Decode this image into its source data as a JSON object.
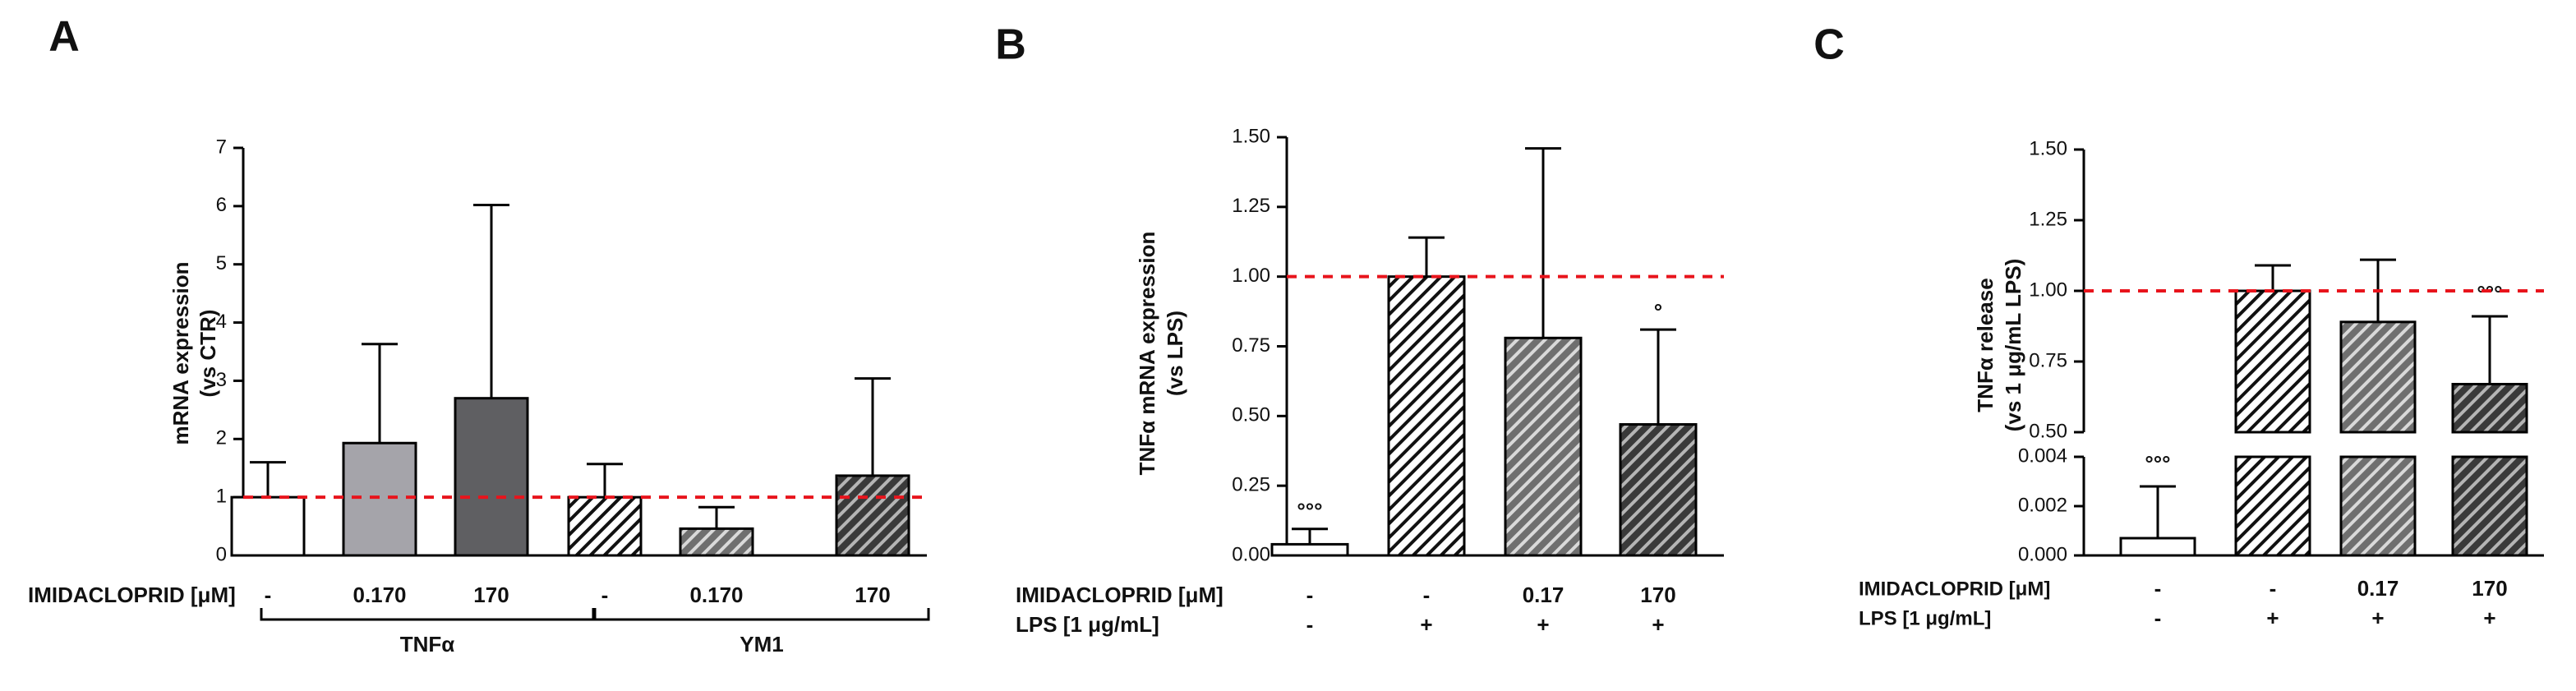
{
  "colors": {
    "bar_outline": "#000000",
    "ref_line": "#e8141c",
    "white": "#ffffff",
    "light_gray": "#a5a4aa",
    "dark_gray": "#5f5f62",
    "hatch_mid": "#6f6f6f",
    "hatch_dark": "#3a3a3a"
  },
  "chart_data": [
    {
      "panel_label": "A",
      "type": "bar",
      "ylabel_lines": [
        "mRNA expression",
        "(vs CTR)"
      ],
      "ylim": [
        0,
        7
      ],
      "yticks": [
        "0",
        "1",
        "2",
        "3",
        "4",
        "5",
        "6",
        "7"
      ],
      "reference_line": 1,
      "row_labels": [
        "IMIDACLOPRID [μM]"
      ],
      "rows": [
        [
          "-",
          "0.170",
          "170",
          "-",
          "0.170",
          "170"
        ]
      ],
      "groups": [
        {
          "label": "TNFα",
          "from": 0,
          "to": 2
        },
        {
          "label": "YM1",
          "from": 3,
          "to": 5
        }
      ],
      "bars": [
        {
          "value": 1.0,
          "err": 0.6,
          "fill": "white"
        },
        {
          "value": 1.93,
          "err": 1.7,
          "fill": "light_gray"
        },
        {
          "value": 2.7,
          "err": 3.32,
          "fill": "dark_gray"
        },
        {
          "value": 1.0,
          "err": 0.57,
          "fill": "hatch_light"
        },
        {
          "value": 0.46,
          "err": 0.37,
          "fill": "hatch_mid"
        },
        {
          "value": 1.37,
          "err": 1.67,
          "fill": "hatch_dark"
        }
      ]
    },
    {
      "panel_label": "B",
      "type": "bar",
      "ylabel_lines": [
        "TNFα mRNA expression",
        "(vs LPS)"
      ],
      "ylim": [
        0,
        1.5
      ],
      "yticks": [
        "0.00",
        "0.25",
        "0.50",
        "0.75",
        "1.00",
        "1.25",
        "1.50"
      ],
      "reference_line": 1,
      "row_labels": [
        "IMIDACLOPRID [μM]",
        "LPS [1 μg/mL]"
      ],
      "rows": [
        [
          "-",
          "-",
          "0.17",
          "170"
        ],
        [
          "-",
          "+",
          "+",
          "+"
        ]
      ],
      "bars": [
        {
          "value": 0.04,
          "err": 0.055,
          "fill": "white",
          "mark": "°°°"
        },
        {
          "value": 1.0,
          "err": 0.14,
          "fill": "hatch_light",
          "mark": ""
        },
        {
          "value": 0.78,
          "err": 0.68,
          "fill": "hatch_mid",
          "mark": ""
        },
        {
          "value": 0.47,
          "err": 0.34,
          "fill": "hatch_dark",
          "mark": "°"
        }
      ]
    },
    {
      "panel_label": "C",
      "type": "bar",
      "ylabel_lines": [
        "TNFα release",
        "(vs 1 μg/mL LPS)"
      ],
      "broken_axis": true,
      "upper_ylim": [
        0.5,
        1.5
      ],
      "upper_yticks": [
        "0.50",
        "0.75",
        "1.00",
        "1.25",
        "1.50"
      ],
      "lower_ylim": [
        0,
        0.004
      ],
      "lower_yticks": [
        "0.000",
        "0.002",
        "0.004"
      ],
      "reference_line": 1,
      "row_labels": [
        "IMIDACLOPRID [μM]",
        "LPS [1 μg/mL]"
      ],
      "rows": [
        [
          "-",
          "-",
          "0.17",
          "170"
        ],
        [
          "-",
          "+",
          "+",
          "+"
        ]
      ],
      "bars": [
        {
          "value": 0.0007,
          "err": 0.0021,
          "fill": "white",
          "mark": "°°°"
        },
        {
          "value": 1.0,
          "err": 0.09,
          "fill": "hatch_light",
          "mark": ""
        },
        {
          "value": 0.89,
          "err": 0.22,
          "fill": "hatch_mid",
          "mark": ""
        },
        {
          "value": 0.67,
          "err": 0.24,
          "fill": "hatch_dark",
          "mark": "°°°"
        }
      ]
    }
  ]
}
